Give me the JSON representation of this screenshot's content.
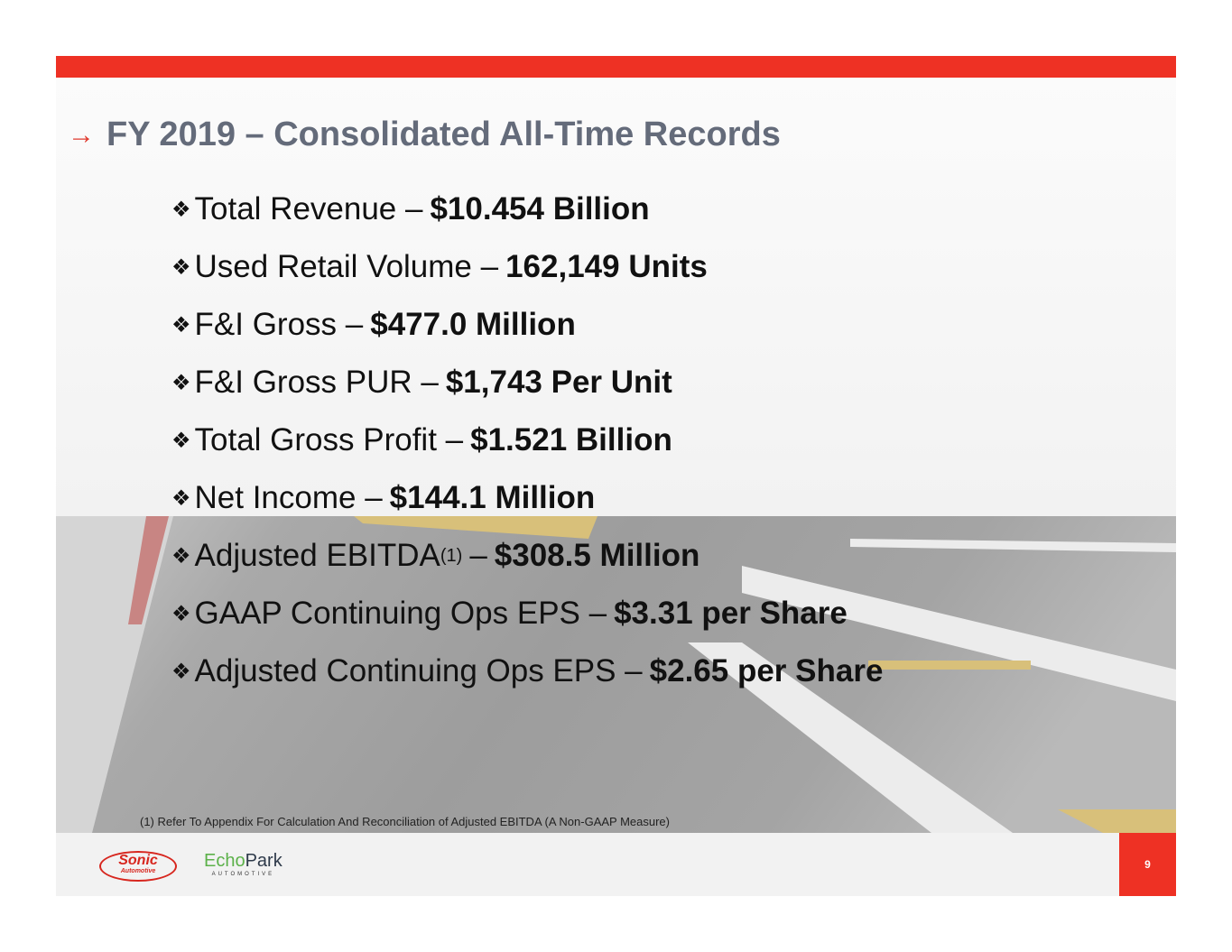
{
  "title": "FY 2019 – Consolidated All-Time Records",
  "arrow_icon": "→",
  "bullet_icon": "❖",
  "bullets": [
    {
      "label": "Total Revenue –",
      "value": "$10.454 Billion"
    },
    {
      "label": "Used Retail Volume –",
      "value": "162,149 Units"
    },
    {
      "label": "F&I Gross –",
      "value": "$477.0 Million"
    },
    {
      "label": "F&I Gross PUR –",
      "value": "$1,743 Per Unit"
    },
    {
      "label": "Total Gross Profit –",
      "value": "$1.521 Billion"
    },
    {
      "label": "Net Income –",
      "value": "$144.1 Million"
    },
    {
      "label": "Adjusted EBITDA",
      "sup": "(1)",
      "dash": "–",
      "value": "$308.5 Million"
    },
    {
      "label": "GAAP Continuing Ops EPS –",
      "value": "$3.31 per Share"
    },
    {
      "label": "Adjusted Continuing Ops EPS –",
      "value": "$2.65 per Share"
    }
  ],
  "footnote": "(1) Refer To Appendix For Calculation And Reconciliation of Adjusted EBITDA (A Non-GAAP Measure)",
  "logos": {
    "sonic": "Sonic",
    "sonic_sub": "Automotive",
    "echo_a": "Echo",
    "echo_b": "Park",
    "echo_sub": "AUTOMOTIVE"
  },
  "page_number": "9",
  "colors": {
    "accent": "#ee3124",
    "title": "#646b7a"
  }
}
